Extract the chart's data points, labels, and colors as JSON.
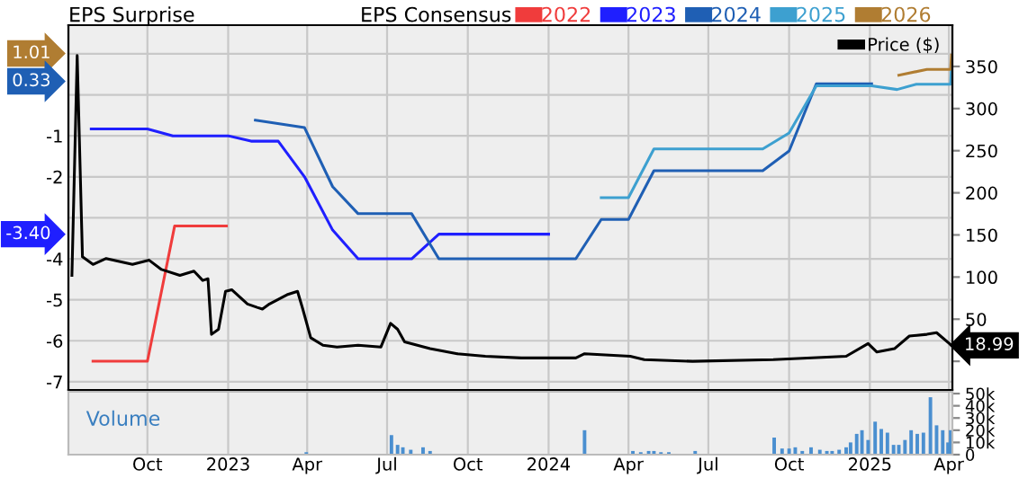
{
  "chart_data": [
    {
      "type": "line",
      "ylabel": "EPS Surprise",
      "legend_title": "EPS Consensus",
      "legend": "top",
      "grid": true,
      "tick_labels": "y",
      "xlim": [
        "2022-07-03",
        "2025-04-05"
      ],
      "xticks": [
        {
          "value": "2022-10-01",
          "label": null
        },
        {
          "value": "2023-01-01",
          "label": null
        },
        {
          "value": "2023-04-01",
          "label": null
        },
        {
          "value": "2023-07-01",
          "label": null
        },
        {
          "value": "2023-10-01",
          "label": null
        },
        {
          "value": "2024-01-01",
          "label": null
        },
        {
          "value": "2024-04-01",
          "label": null
        },
        {
          "value": "2024-07-01",
          "label": null
        },
        {
          "value": "2024-10-01",
          "label": null
        },
        {
          "value": "2025-01-01",
          "label": null
        },
        {
          "value": "2025-04-01",
          "label": null
        }
      ],
      "ylim": [
        -7.2,
        1.7
      ],
      "yticks": [
        -7,
        -6,
        -5,
        -4,
        {
          "value": -3,
          "label": null
        },
        -2,
        -1,
        {
          "value": 0,
          "label": null
        },
        {
          "value": 1,
          "label": null
        }
      ],
      "y2lim": [
        -34,
        399
      ],
      "y2ticks": [
        {
          "value": 0,
          "label": null
        },
        50,
        100,
        150,
        200,
        250,
        300,
        350
      ],
      "annotations": [
        {
          "text": "1.01",
          "x": "2022-07-03",
          "y": 1.01
        },
        {
          "text": "0.33",
          "x": "2022-07-03",
          "y": 0.33
        },
        {
          "text": "-3.40",
          "x": "2022-07-03",
          "y": -3.4
        }
      ],
      "series": [
        {
          "name": "2022",
          "color": "#f03c3c",
          "x": [
            "2022-07-31",
            "2022-10-01",
            "2022-11-01",
            "2022-12-30"
          ],
          "values": [
            -6.5,
            -6.5,
            -3.2,
            -3.2
          ]
        },
        {
          "name": "2023",
          "color": "#1f1fff",
          "x": [
            "2022-07-29",
            "2022-10-01",
            "2022-10-30",
            "2023-01-01",
            "2023-01-27",
            "2023-02-27",
            "2023-03-29",
            "2023-04-30",
            "2023-05-29",
            "2023-07-29",
            "2023-08-29",
            "2024-01-01"
          ],
          "values": [
            -0.83,
            -0.83,
            -1.0,
            -1.0,
            -1.13,
            -1.13,
            -2.0,
            -3.3,
            -4.0,
            -4.0,
            -3.4,
            -3.4
          ]
        },
        {
          "name": "2024",
          "color": "#1f5fb4",
          "x": [
            "2023-02-01",
            "2023-03-29",
            "2023-04-30",
            "2023-05-29",
            "2023-07-29",
            "2023-08-29",
            "2024-02-01",
            "2024-03-01",
            "2024-04-01",
            "2024-04-30",
            "2024-09-01",
            "2024-10-01",
            "2024-11-01",
            "2025-01-03"
          ],
          "values": [
            -0.62,
            -0.8,
            -2.24,
            -2.9,
            -2.9,
            -4.0,
            -4.0,
            -3.04,
            -3.04,
            -1.85,
            -1.85,
            -1.37,
            0.27,
            0.27
          ]
        },
        {
          "name": "2025",
          "color": "#3da0d0",
          "x": [
            "2024-03-01",
            "2024-04-01",
            "2024-04-30",
            "2024-09-01",
            "2024-10-01",
            "2024-11-01",
            "2025-01-03",
            "2025-02-01",
            "2025-02-23",
            "2025-04-03",
            "2025-04-04"
          ],
          "values": [
            -2.51,
            -2.51,
            -1.32,
            -1.32,
            -0.93,
            0.22,
            0.22,
            0.13,
            0.26,
            0.26,
            0.7
          ]
        },
        {
          "name": "2026",
          "color": "#b07d32",
          "x": [
            "2025-02-03",
            "2025-03-07",
            "2025-04-03",
            "2025-04-04"
          ],
          "values": [
            0.48,
            0.62,
            0.62,
            0.97
          ]
        },
        {
          "name": "Price ($)",
          "color": "#000000",
          "axis": "y2",
          "x": [
            "2022-07-07",
            "2022-07-13",
            "2022-07-19",
            "2022-07-31",
            "2022-08-15",
            "2022-09-14",
            "2022-10-03",
            "2022-10-17",
            "2022-11-07",
            "2022-11-23",
            "2022-12-03",
            "2022-12-09",
            "2022-12-13",
            "2022-12-21",
            "2022-12-29",
            "2023-01-05",
            "2023-01-23",
            "2023-02-03",
            "2023-02-09",
            "2023-02-17",
            "2023-03-09",
            "2023-03-21",
            "2023-03-27",
            "2023-04-05",
            "2023-04-19",
            "2023-05-05",
            "2023-05-29",
            "2023-06-24",
            "2023-07-05",
            "2023-07-13",
            "2023-07-21",
            "2023-08-19",
            "2023-09-19",
            "2023-10-21",
            "2023-12-01",
            "2024-02-01",
            "2024-02-11",
            "2024-04-03",
            "2024-04-19",
            "2024-06-13",
            "2024-09-13",
            "2024-12-05",
            "2024-12-30",
            "2025-01-09",
            "2025-01-29",
            "2025-02-15",
            "2025-03-07",
            "2025-03-18",
            "2025-04-04"
          ],
          "values": [
            102,
            363,
            124,
            115,
            122,
            115,
            120,
            109,
            102,
            107,
            96,
            98,
            32,
            38,
            83,
            85,
            68,
            64,
            62,
            68,
            79,
            83,
            62,
            28,
            19,
            17,
            19,
            17,
            45,
            38,
            23,
            15,
            9,
            6,
            4,
            4,
            9,
            6,
            2,
            0,
            2,
            6,
            21,
            11,
            15,
            30,
            32,
            34,
            18.99
          ],
          "value_labels": [
            null,
            null,
            null,
            null,
            null,
            null,
            null,
            null,
            null,
            null,
            null,
            null,
            null,
            null,
            null,
            null,
            null,
            null,
            null,
            null,
            null,
            null,
            null,
            null,
            null,
            null,
            null,
            null,
            null,
            null,
            null,
            null,
            null,
            null,
            null,
            null,
            null,
            null,
            null,
            null,
            null,
            null,
            null,
            null,
            null,
            null,
            null,
            null,
            "18.99"
          ]
        }
      ]
    },
    {
      "type": "bar",
      "title": "Volume",
      "grid": "x",
      "xlim": [
        "2022-07-03",
        "2025-04-05"
      ],
      "xticks": [
        {
          "value": "2022-10-01",
          "label": "Oct"
        },
        {
          "value": "2023-01-01",
          "label": "2023"
        },
        {
          "value": "2023-04-01",
          "label": "Apr"
        },
        {
          "value": "2023-07-01",
          "label": "Jul"
        },
        {
          "value": "2023-10-01",
          "label": "Oct"
        },
        {
          "value": "2024-01-01",
          "label": "2024"
        },
        {
          "value": "2024-04-01",
          "label": "Apr"
        },
        {
          "value": "2024-07-01",
          "label": "Jul"
        },
        {
          "value": "2024-10-01",
          "label": "Oct"
        },
        {
          "value": "2025-01-01",
          "label": "2025"
        },
        {
          "value": "2025-04-01",
          "label": "Apr"
        }
      ],
      "ylim": [
        0,
        51500
      ],
      "yticks": [
        0,
        {
          "value": 10000,
          "label": "10k"
        },
        {
          "value": 20000,
          "label": "20k"
        },
        {
          "value": 30000,
          "label": "30k"
        },
        {
          "value": 40000,
          "label": "40k"
        },
        {
          "value": 50000,
          "label": "50k"
        }
      ],
      "series": [
        {
          "color": "#4a8fd0",
          "x": [
            "2023-03-31",
            "2023-07-06",
            "2023-07-13",
            "2023-07-19",
            "2023-07-28",
            "2023-08-11",
            "2023-08-19",
            "2024-02-11",
            "2024-04-06",
            "2024-04-15",
            "2024-04-24",
            "2024-04-30",
            "2024-05-08",
            "2024-05-17",
            "2024-06-16",
            "2024-09-14",
            "2024-09-23",
            "2024-10-01",
            "2024-10-08",
            "2024-10-16",
            "2024-10-26",
            "2024-11-05",
            "2024-11-13",
            "2024-11-19",
            "2024-11-27",
            "2024-12-05",
            "2024-12-10",
            "2024-12-17",
            "2024-12-23",
            "2024-12-30",
            "2025-01-07",
            "2025-01-14",
            "2025-01-21",
            "2025-01-28",
            "2025-02-03",
            "2025-02-10",
            "2025-02-17",
            "2025-02-24",
            "2025-03-03",
            "2025-03-11",
            "2025-03-18",
            "2025-03-25",
            "2025-03-31",
            "2025-04-03"
          ],
          "values": [
            2000,
            16000,
            8000,
            6000,
            4000,
            6000,
            3000,
            20000,
            3000,
            2000,
            3000,
            3000,
            2000,
            2000,
            3000,
            14000,
            5000,
            5000,
            6000,
            3000,
            6000,
            4000,
            3000,
            3000,
            4000,
            6000,
            10000,
            17000,
            20000,
            12000,
            27000,
            21000,
            18000,
            8000,
            8000,
            12000,
            20000,
            17000,
            18000,
            47000,
            24000,
            20000,
            10000,
            20000
          ]
        }
      ]
    }
  ]
}
